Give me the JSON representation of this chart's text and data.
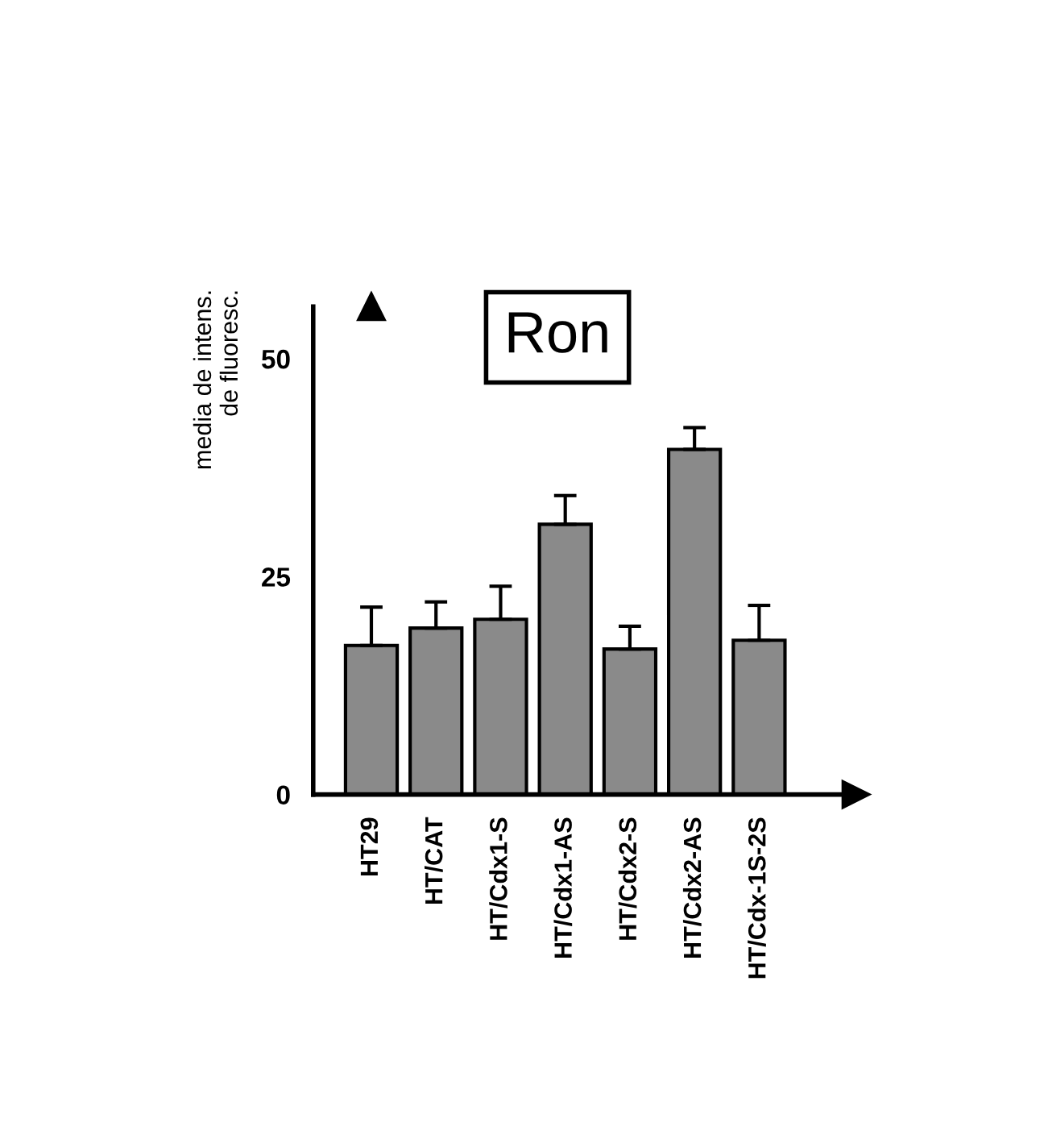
{
  "chart_data": {
    "type": "bar",
    "title": "Ron",
    "ylabel": "media de intens.\nde fluoresc.",
    "categories": [
      "HT29",
      "HT/CAT",
      "HT/Cdx1-S",
      "HT/Cdx1-AS",
      "HT/Cdx2-S",
      "HT/Cdx2-AS",
      "HT/Cdx-1S-2S"
    ],
    "values": [
      17.1,
      19.1,
      20.1,
      31.0,
      16.7,
      39.6,
      17.7
    ],
    "errors": [
      4.4,
      3.0,
      3.8,
      3.3,
      2.6,
      2.5,
      4.0
    ],
    "color": "#8a8a8a",
    "ylim": [
      0,
      56
    ],
    "yticks": [
      0,
      25,
      50
    ],
    "grid": false
  }
}
